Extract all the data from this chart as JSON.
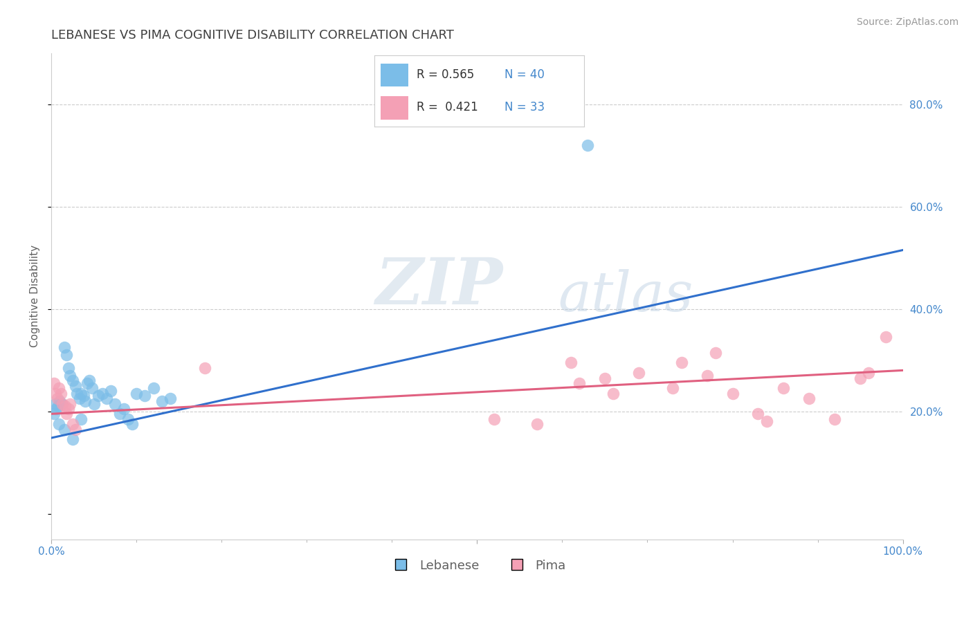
{
  "title": "LEBANESE VS PIMA COGNITIVE DISABILITY CORRELATION CHART",
  "source_text": "Source: ZipAtlas.com",
  "ylabel": "Cognitive Disability",
  "xlim": [
    0,
    1.0
  ],
  "ylim": [
    -0.05,
    0.9
  ],
  "right_yticks": [
    0.2,
    0.4,
    0.6,
    0.8
  ],
  "right_yticklabels": [
    "20.0%",
    "40.0%",
    "60.0%",
    "80.0%"
  ],
  "blue_R": 0.565,
  "blue_N": 40,
  "pink_R": 0.421,
  "pink_N": 33,
  "blue_color": "#7bbde8",
  "pink_color": "#f4a0b5",
  "blue_line_color": "#3070cc",
  "pink_line_color": "#e06080",
  "legend_label_blue": "Lebanese",
  "legend_label_pink": "Pima",
  "watermark_zip": "ZIP",
  "watermark_atlas": "atlas",
  "grid_color": "#cccccc",
  "background_color": "#ffffff",
  "title_color": "#404040",
  "title_fontsize": 13,
  "axis_label_color": "#606060",
  "tick_label_color": "#4488cc",
  "source_color": "#999999",
  "source_fontsize": 10,
  "blue_line_x": [
    0.0,
    1.0
  ],
  "blue_line_y": [
    0.148,
    0.515
  ],
  "pink_line_x": [
    0.0,
    1.0
  ],
  "pink_line_y": [
    0.195,
    0.28
  ],
  "blue_scatter_x": [
    0.005,
    0.006,
    0.003,
    0.008,
    0.01,
    0.012,
    0.015,
    0.018,
    0.02,
    0.022,
    0.025,
    0.028,
    0.03,
    0.033,
    0.035,
    0.038,
    0.04,
    0.042,
    0.045,
    0.048,
    0.05,
    0.055,
    0.06,
    0.065,
    0.07,
    0.075,
    0.08,
    0.085,
    0.09,
    0.095,
    0.1,
    0.11,
    0.12,
    0.13,
    0.14,
    0.015,
    0.025,
    0.035,
    0.63,
    0.009
  ],
  "blue_scatter_y": [
    0.215,
    0.205,
    0.195,
    0.21,
    0.22,
    0.215,
    0.325,
    0.31,
    0.285,
    0.27,
    0.26,
    0.25,
    0.235,
    0.225,
    0.235,
    0.23,
    0.22,
    0.255,
    0.26,
    0.245,
    0.215,
    0.23,
    0.235,
    0.225,
    0.24,
    0.215,
    0.195,
    0.205,
    0.185,
    0.175,
    0.235,
    0.23,
    0.245,
    0.22,
    0.225,
    0.165,
    0.145,
    0.185,
    0.72,
    0.175
  ],
  "pink_scatter_x": [
    0.003,
    0.005,
    0.007,
    0.009,
    0.011,
    0.013,
    0.016,
    0.018,
    0.02,
    0.022,
    0.025,
    0.028,
    0.18,
    0.52,
    0.57,
    0.61,
    0.65,
    0.69,
    0.73,
    0.77,
    0.8,
    0.83,
    0.86,
    0.89,
    0.92,
    0.95,
    0.98,
    0.74,
    0.78,
    0.62,
    0.66,
    0.84,
    0.96
  ],
  "pink_scatter_y": [
    0.255,
    0.235,
    0.225,
    0.245,
    0.235,
    0.215,
    0.21,
    0.195,
    0.205,
    0.215,
    0.175,
    0.165,
    0.285,
    0.185,
    0.175,
    0.295,
    0.265,
    0.275,
    0.245,
    0.27,
    0.235,
    0.195,
    0.245,
    0.225,
    0.185,
    0.265,
    0.345,
    0.295,
    0.315,
    0.255,
    0.235,
    0.18,
    0.275
  ]
}
